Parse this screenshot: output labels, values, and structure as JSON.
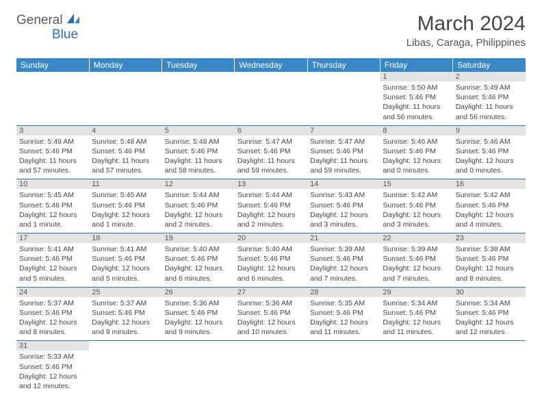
{
  "logo": {
    "general": "General",
    "blue": "Blue"
  },
  "title": "March 2024",
  "location": "Libas, Caraga, Philippines",
  "day_headers": [
    "Sunday",
    "Monday",
    "Tuesday",
    "Wednesday",
    "Thursday",
    "Friday",
    "Saturday"
  ],
  "colors": {
    "header_bg": "#3a87c7",
    "header_text": "#ffffff",
    "row_border": "#2f6fa8",
    "daynum_bg": "#e3e3e3",
    "text": "#444444"
  },
  "weeks": [
    [
      null,
      null,
      null,
      null,
      null,
      {
        "n": "1",
        "sr": "Sunrise: 5:50 AM",
        "ss": "Sunset: 5:46 PM",
        "dl": "Daylight: 11 hours and 56 minutes."
      },
      {
        "n": "2",
        "sr": "Sunrise: 5:49 AM",
        "ss": "Sunset: 5:46 PM",
        "dl": "Daylight: 11 hours and 56 minutes."
      }
    ],
    [
      {
        "n": "3",
        "sr": "Sunrise: 5:49 AM",
        "ss": "Sunset: 5:46 PM",
        "dl": "Daylight: 11 hours and 57 minutes."
      },
      {
        "n": "4",
        "sr": "Sunrise: 5:48 AM",
        "ss": "Sunset: 5:46 PM",
        "dl": "Daylight: 11 hours and 57 minutes."
      },
      {
        "n": "5",
        "sr": "Sunrise: 5:48 AM",
        "ss": "Sunset: 5:46 PM",
        "dl": "Daylight: 11 hours and 58 minutes."
      },
      {
        "n": "6",
        "sr": "Sunrise: 5:47 AM",
        "ss": "Sunset: 5:46 PM",
        "dl": "Daylight: 11 hours and 59 minutes."
      },
      {
        "n": "7",
        "sr": "Sunrise: 5:47 AM",
        "ss": "Sunset: 5:46 PM",
        "dl": "Daylight: 11 hours and 59 minutes."
      },
      {
        "n": "8",
        "sr": "Sunrise: 5:46 AM",
        "ss": "Sunset: 5:46 PM",
        "dl": "Daylight: 12 hours and 0 minutes."
      },
      {
        "n": "9",
        "sr": "Sunrise: 5:46 AM",
        "ss": "Sunset: 5:46 PM",
        "dl": "Daylight: 12 hours and 0 minutes."
      }
    ],
    [
      {
        "n": "10",
        "sr": "Sunrise: 5:45 AM",
        "ss": "Sunset: 5:46 PM",
        "dl": "Daylight: 12 hours and 1 minute."
      },
      {
        "n": "11",
        "sr": "Sunrise: 5:45 AM",
        "ss": "Sunset: 5:46 PM",
        "dl": "Daylight: 12 hours and 1 minute."
      },
      {
        "n": "12",
        "sr": "Sunrise: 5:44 AM",
        "ss": "Sunset: 5:46 PM",
        "dl": "Daylight: 12 hours and 2 minutes."
      },
      {
        "n": "13",
        "sr": "Sunrise: 5:44 AM",
        "ss": "Sunset: 5:46 PM",
        "dl": "Daylight: 12 hours and 2 minutes."
      },
      {
        "n": "14",
        "sr": "Sunrise: 5:43 AM",
        "ss": "Sunset: 5:46 PM",
        "dl": "Daylight: 12 hours and 3 minutes."
      },
      {
        "n": "15",
        "sr": "Sunrise: 5:42 AM",
        "ss": "Sunset: 5:46 PM",
        "dl": "Daylight: 12 hours and 3 minutes."
      },
      {
        "n": "16",
        "sr": "Sunrise: 5:42 AM",
        "ss": "Sunset: 5:46 PM",
        "dl": "Daylight: 12 hours and 4 minutes."
      }
    ],
    [
      {
        "n": "17",
        "sr": "Sunrise: 5:41 AM",
        "ss": "Sunset: 5:46 PM",
        "dl": "Daylight: 12 hours and 5 minutes."
      },
      {
        "n": "18",
        "sr": "Sunrise: 5:41 AM",
        "ss": "Sunset: 5:46 PM",
        "dl": "Daylight: 12 hours and 5 minutes."
      },
      {
        "n": "19",
        "sr": "Sunrise: 5:40 AM",
        "ss": "Sunset: 5:46 PM",
        "dl": "Daylight: 12 hours and 6 minutes."
      },
      {
        "n": "20",
        "sr": "Sunrise: 5:40 AM",
        "ss": "Sunset: 5:46 PM",
        "dl": "Daylight: 12 hours and 6 minutes."
      },
      {
        "n": "21",
        "sr": "Sunrise: 5:39 AM",
        "ss": "Sunset: 5:46 PM",
        "dl": "Daylight: 12 hours and 7 minutes."
      },
      {
        "n": "22",
        "sr": "Sunrise: 5:39 AM",
        "ss": "Sunset: 5:46 PM",
        "dl": "Daylight: 12 hours and 7 minutes."
      },
      {
        "n": "23",
        "sr": "Sunrise: 5:38 AM",
        "ss": "Sunset: 5:46 PM",
        "dl": "Daylight: 12 hours and 8 minutes."
      }
    ],
    [
      {
        "n": "24",
        "sr": "Sunrise: 5:37 AM",
        "ss": "Sunset: 5:46 PM",
        "dl": "Daylight: 12 hours and 8 minutes."
      },
      {
        "n": "25",
        "sr": "Sunrise: 5:37 AM",
        "ss": "Sunset: 5:46 PM",
        "dl": "Daylight: 12 hours and 9 minutes."
      },
      {
        "n": "26",
        "sr": "Sunrise: 5:36 AM",
        "ss": "Sunset: 5:46 PM",
        "dl": "Daylight: 12 hours and 9 minutes."
      },
      {
        "n": "27",
        "sr": "Sunrise: 5:36 AM",
        "ss": "Sunset: 5:46 PM",
        "dl": "Daylight: 12 hours and 10 minutes."
      },
      {
        "n": "28",
        "sr": "Sunrise: 5:35 AM",
        "ss": "Sunset: 5:46 PM",
        "dl": "Daylight: 12 hours and 11 minutes."
      },
      {
        "n": "29",
        "sr": "Sunrise: 5:34 AM",
        "ss": "Sunset: 5:46 PM",
        "dl": "Daylight: 12 hours and 11 minutes."
      },
      {
        "n": "30",
        "sr": "Sunrise: 5:34 AM",
        "ss": "Sunset: 5:46 PM",
        "dl": "Daylight: 12 hours and 12 minutes."
      }
    ],
    [
      {
        "n": "31",
        "sr": "Sunrise: 5:33 AM",
        "ss": "Sunset: 5:46 PM",
        "dl": "Daylight: 12 hours and 12 minutes."
      },
      null,
      null,
      null,
      null,
      null,
      null
    ]
  ]
}
